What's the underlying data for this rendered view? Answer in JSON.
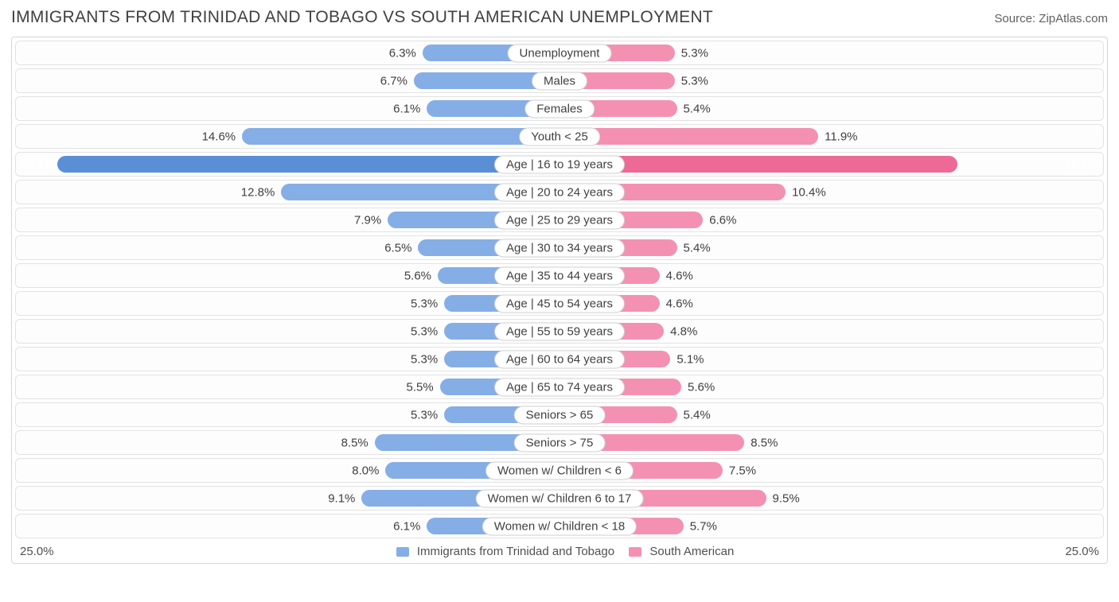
{
  "title": "IMMIGRANTS FROM TRINIDAD AND TOBAGO VS SOUTH AMERICAN UNEMPLOYMENT",
  "source_prefix": "Source: ",
  "source_name": "ZipAtlas.com",
  "axis_max": 25.0,
  "axis_label": "25.0%",
  "legend": {
    "left": {
      "label": "Immigrants from Trinidad and Tobago",
      "color": "#84aee5"
    },
    "right": {
      "label": "South American",
      "color": "#f491b2"
    }
  },
  "colors": {
    "row_border": "#e3e3e3",
    "outer_border": "#d6d6d6",
    "text": "#404040",
    "pct_left": "#404040",
    "pct_right": "#404040",
    "bar_left": {
      "base": "#84aee5",
      "hi": "#5a8fd6"
    },
    "bar_right": {
      "base": "#f491b2",
      "hi": "#ec6a95"
    }
  },
  "highlight_index": 4,
  "rows": [
    {
      "cat": "Unemployment",
      "l": 6.3,
      "r": 5.3
    },
    {
      "cat": "Males",
      "l": 6.7,
      "r": 5.3
    },
    {
      "cat": "Females",
      "l": 6.1,
      "r": 5.4
    },
    {
      "cat": "Youth < 25",
      "l": 14.6,
      "r": 11.9
    },
    {
      "cat": "Age | 16 to 19 years",
      "l": 23.1,
      "r": 18.3
    },
    {
      "cat": "Age | 20 to 24 years",
      "l": 12.8,
      "r": 10.4
    },
    {
      "cat": "Age | 25 to 29 years",
      "l": 7.9,
      "r": 6.6
    },
    {
      "cat": "Age | 30 to 34 years",
      "l": 6.5,
      "r": 5.4
    },
    {
      "cat": "Age | 35 to 44 years",
      "l": 5.6,
      "r": 4.6
    },
    {
      "cat": "Age | 45 to 54 years",
      "l": 5.3,
      "r": 4.6
    },
    {
      "cat": "Age | 55 to 59 years",
      "l": 5.3,
      "r": 4.8
    },
    {
      "cat": "Age | 60 to 64 years",
      "l": 5.3,
      "r": 5.1
    },
    {
      "cat": "Age | 65 to 74 years",
      "l": 5.5,
      "r": 5.6
    },
    {
      "cat": "Seniors > 65",
      "l": 5.3,
      "r": 5.4
    },
    {
      "cat": "Seniors > 75",
      "l": 8.5,
      "r": 8.5
    },
    {
      "cat": "Women w/ Children < 6",
      "l": 8.0,
      "r": 7.5
    },
    {
      "cat": "Women w/ Children 6 to 17",
      "l": 9.1,
      "r": 9.5
    },
    {
      "cat": "Women w/ Children < 18",
      "l": 6.1,
      "r": 5.7
    }
  ]
}
